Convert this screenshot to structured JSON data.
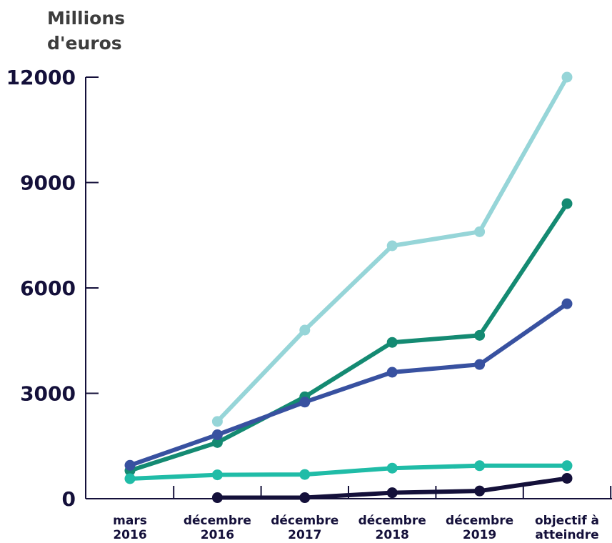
{
  "chart_data": {
    "type": "line",
    "ylabel": [
      "Millions",
      "d'euros"
    ],
    "xlabel": "",
    "ylim": [
      0,
      12000
    ],
    "yticks": [
      "0",
      "3000",
      "6000",
      "9000",
      "12000"
    ],
    "ytick_values": [
      0,
      3000,
      6000,
      9000,
      12000
    ],
    "categories": [
      [
        "mars",
        "2016"
      ],
      [
        "décembre",
        "2016"
      ],
      [
        "décembre",
        "2017"
      ],
      [
        "décembre",
        "2018"
      ],
      [
        "décembre",
        "2019"
      ],
      [
        "objectif à",
        "atteindre"
      ]
    ],
    "grid": false,
    "series": [
      {
        "color": "#96d5d8",
        "values": [
          null,
          2200,
          4800,
          7200,
          7600,
          12000
        ]
      },
      {
        "color": "#148a72",
        "values": [
          800,
          1600,
          2900,
          4450,
          4650,
          8400
        ]
      },
      {
        "color": "#3851a0",
        "values": [
          950,
          1820,
          2750,
          3600,
          3820,
          5550
        ]
      },
      {
        "color": "#20bca7",
        "values": [
          570,
          680,
          690,
          870,
          940,
          940
        ]
      },
      {
        "color": "#14103a",
        "values": [
          null,
          30,
          30,
          170,
          220,
          580
        ]
      }
    ]
  }
}
